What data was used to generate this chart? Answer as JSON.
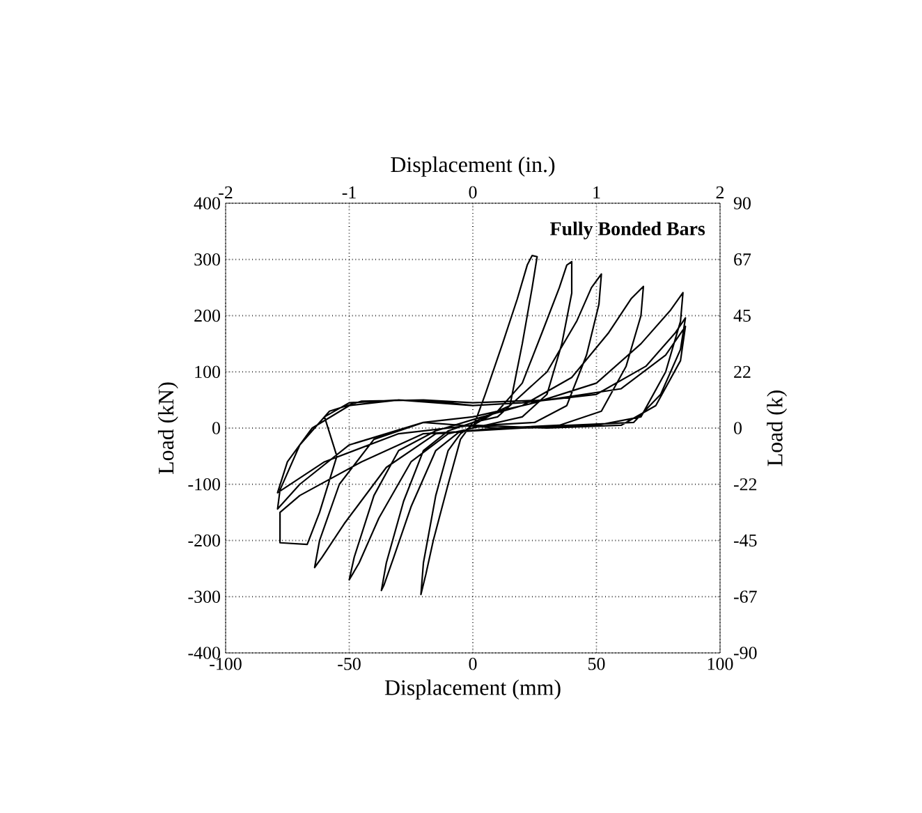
{
  "chart_data": {
    "type": "line",
    "xlabel": "Displacement (mm)",
    "ylabel": "Load (kN)",
    "y2label": "Load (k)",
    "x2label": "Displacement (in.)",
    "annotations": [
      "Fully Bonded Bars"
    ],
    "xlim": [
      -100,
      100
    ],
    "xticks": [
      -100,
      -50,
      0,
      50,
      100
    ],
    "ylim": [
      -400,
      400
    ],
    "yticks": [
      -400,
      -300,
      -200,
      -100,
      0,
      100,
      200,
      300,
      400
    ],
    "x2lim": [
      -2,
      2
    ],
    "x2ticks": [
      -2,
      -1,
      0,
      1,
      2
    ],
    "y2lim": [
      -89.92,
      89.92
    ],
    "y2ticks": [
      {
        "value": -89.92,
        "label": "-90"
      },
      {
        "value": -67.44,
        "label": "-67"
      },
      {
        "value": -44.96,
        "label": "-45"
      },
      {
        "value": -22.48,
        "label": "-22"
      },
      {
        "value": 0,
        "label": "0"
      },
      {
        "value": 22.48,
        "label": "22"
      },
      {
        "value": 44.96,
        "label": "45"
      },
      {
        "value": 67.44,
        "label": "67"
      },
      {
        "value": 89.92,
        "label": "90"
      }
    ],
    "grid": true,
    "marker": "none",
    "line_style": "solid",
    "series": [
      {
        "color": "#000000",
        "x": [
          0,
          5,
          12,
          18,
          22,
          24,
          26,
          24,
          20,
          15,
          10,
          0,
          -5,
          -10,
          -16,
          -19,
          -21,
          -20,
          -15,
          -10,
          -5,
          0,
          10,
          20,
          28,
          35,
          38,
          40,
          40,
          36,
          30,
          20,
          5,
          -5,
          -15,
          -25,
          -32,
          -36,
          -37,
          -35,
          -28,
          -20,
          -10,
          0,
          15,
          30,
          42,
          48,
          52,
          51,
          46,
          38,
          25,
          5,
          -10,
          -25,
          -38,
          -46,
          -50,
          -48,
          -40,
          -30,
          -15,
          0,
          20,
          40,
          55,
          64,
          69,
          68,
          62,
          52,
          35,
          10,
          -15,
          -35,
          -52,
          -61,
          -64,
          -62,
          -54,
          -40,
          -20,
          0,
          25,
          50,
          68,
          80,
          85,
          84,
          78,
          68,
          50,
          20,
          -20,
          -45,
          -70,
          -78,
          -78,
          -67,
          -62,
          -55,
          -60,
          -50,
          -30,
          -10,
          0,
          20,
          50,
          70,
          82,
          86,
          84,
          76,
          65,
          40,
          10,
          -20,
          -50,
          -70,
          -79,
          -78,
          -70,
          -58,
          -45,
          -20,
          0,
          30,
          60,
          78,
          86,
          84,
          74,
          60,
          30,
          0,
          -30,
          -60,
          -79,
          -75,
          -65,
          -50,
          -30,
          0
        ],
        "values": [
          0,
          60,
          150,
          230,
          290,
          307,
          305,
          250,
          150,
          40,
          20,
          10,
          -20,
          -100,
          -200,
          -260,
          -296,
          -240,
          -120,
          -40,
          -10,
          5,
          30,
          80,
          170,
          250,
          290,
          296,
          240,
          150,
          60,
          20,
          5,
          -5,
          -40,
          -140,
          -230,
          -280,
          -289,
          -240,
          -130,
          -40,
          -5,
          10,
          40,
          100,
          190,
          250,
          274,
          220,
          130,
          40,
          10,
          5,
          -10,
          -60,
          -160,
          -240,
          -270,
          -230,
          -120,
          -40,
          -5,
          15,
          40,
          90,
          170,
          230,
          252,
          200,
          110,
          30,
          5,
          0,
          -10,
          -70,
          -170,
          -230,
          -248,
          -200,
          -100,
          -20,
          10,
          20,
          45,
          80,
          150,
          210,
          241,
          190,
          100,
          20,
          5,
          0,
          -10,
          -60,
          -120,
          -150,
          -204,
          -207,
          -150,
          -50,
          20,
          45,
          50,
          45,
          40,
          45,
          60,
          110,
          170,
          196,
          140,
          60,
          10,
          5,
          0,
          10,
          -30,
          -100,
          -144,
          -110,
          -30,
          30,
          48,
          50,
          45,
          50,
          70,
          130,
          181,
          120,
          40,
          5,
          0,
          5,
          -10,
          -60,
          -115,
          -60,
          0,
          40,
          50,
          40
        ]
      }
    ]
  }
}
